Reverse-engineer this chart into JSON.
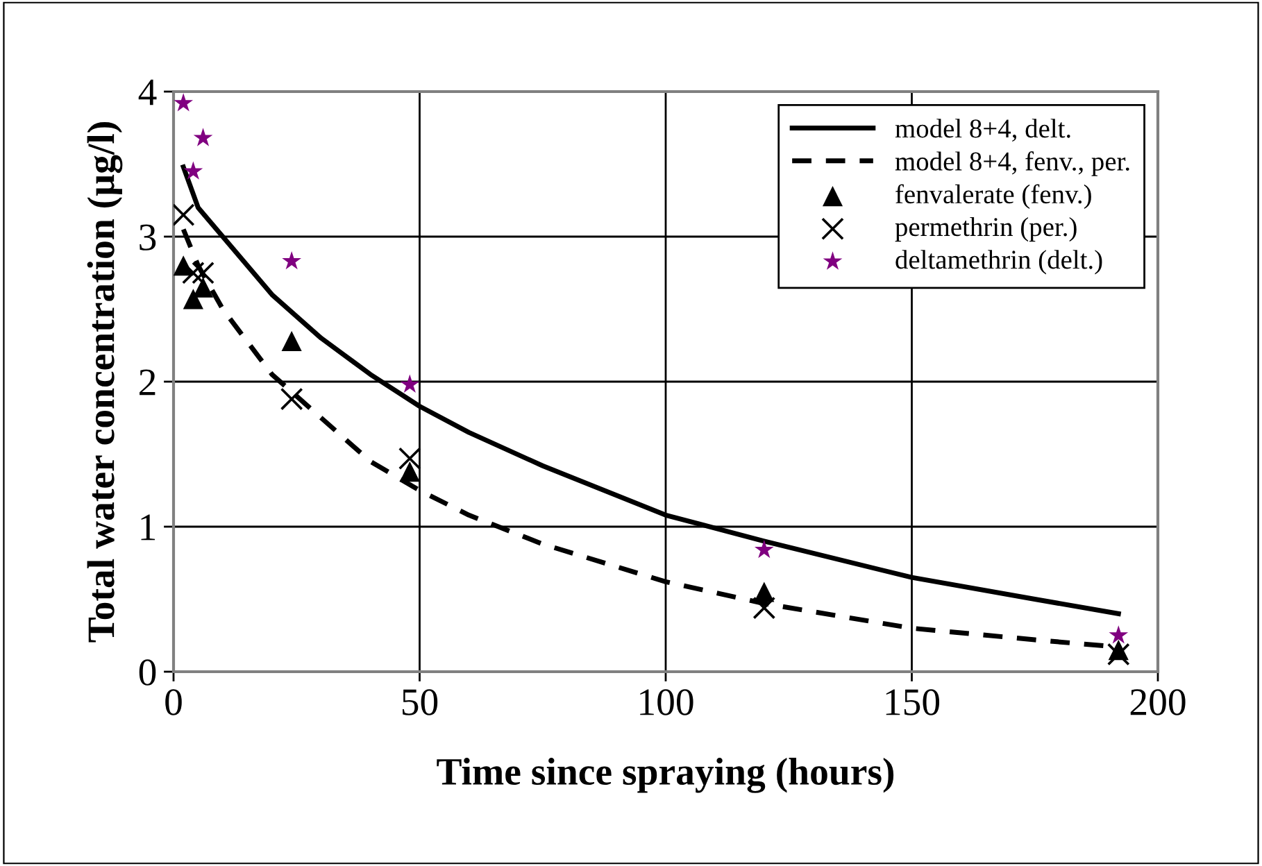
{
  "chart_data": {
    "type": "scatter",
    "xlabel": "Time since spraying (hours)",
    "ylabel": "Total water concentration (µg/l)",
    "xlim": [
      0,
      200
    ],
    "xticks": [
      0,
      50,
      100,
      150,
      200
    ],
    "ylim": [
      0,
      4
    ],
    "yticks": [
      0,
      1,
      2,
      3,
      4
    ],
    "grid": true,
    "legend": "top right",
    "series": [
      {
        "name": "model 8+4, delt.",
        "type": "line",
        "line_style": "solid",
        "marker": "none",
        "color": "#000000",
        "x": [
          2,
          5,
          10,
          20,
          30,
          40,
          50,
          60,
          75,
          100,
          120,
          150,
          175,
          192
        ],
        "values": [
          3.48,
          3.2,
          3.0,
          2.6,
          2.3,
          2.05,
          1.83,
          1.65,
          1.42,
          1.08,
          0.9,
          0.65,
          0.5,
          0.4
        ]
      },
      {
        "name": "model 8+4, fenv., per.",
        "type": "line",
        "line_style": "dashed",
        "marker": "none",
        "color": "#000000",
        "x": [
          2,
          5,
          10,
          20,
          30,
          40,
          50,
          60,
          75,
          100,
          120,
          150,
          175,
          192
        ],
        "values": [
          3.05,
          2.8,
          2.5,
          2.05,
          1.75,
          1.45,
          1.25,
          1.08,
          0.88,
          0.62,
          0.47,
          0.3,
          0.22,
          0.17
        ]
      },
      {
        "name": "fenvalerate (fenv.)",
        "type": "scatter",
        "marker": "triangle",
        "color": "#000000",
        "x": [
          2,
          4,
          6,
          24,
          48,
          120,
          192
        ],
        "values": [
          2.8,
          2.57,
          2.65,
          2.28,
          1.38,
          0.55,
          0.15
        ]
      },
      {
        "name": "permethrin (per.)",
        "type": "scatter",
        "marker": "cross",
        "color": "#000000",
        "x": [
          2,
          4,
          6,
          24,
          48,
          120,
          192
        ],
        "values": [
          3.15,
          2.75,
          2.75,
          1.88,
          1.47,
          0.44,
          0.12
        ]
      },
      {
        "name": "deltamethrin (delt.)",
        "type": "scatter",
        "marker": "star",
        "color": "#800080",
        "x": [
          2,
          4,
          6,
          24,
          48,
          120,
          192
        ],
        "values": [
          3.92,
          3.45,
          3.68,
          2.83,
          1.98,
          0.84,
          0.25
        ]
      }
    ]
  }
}
